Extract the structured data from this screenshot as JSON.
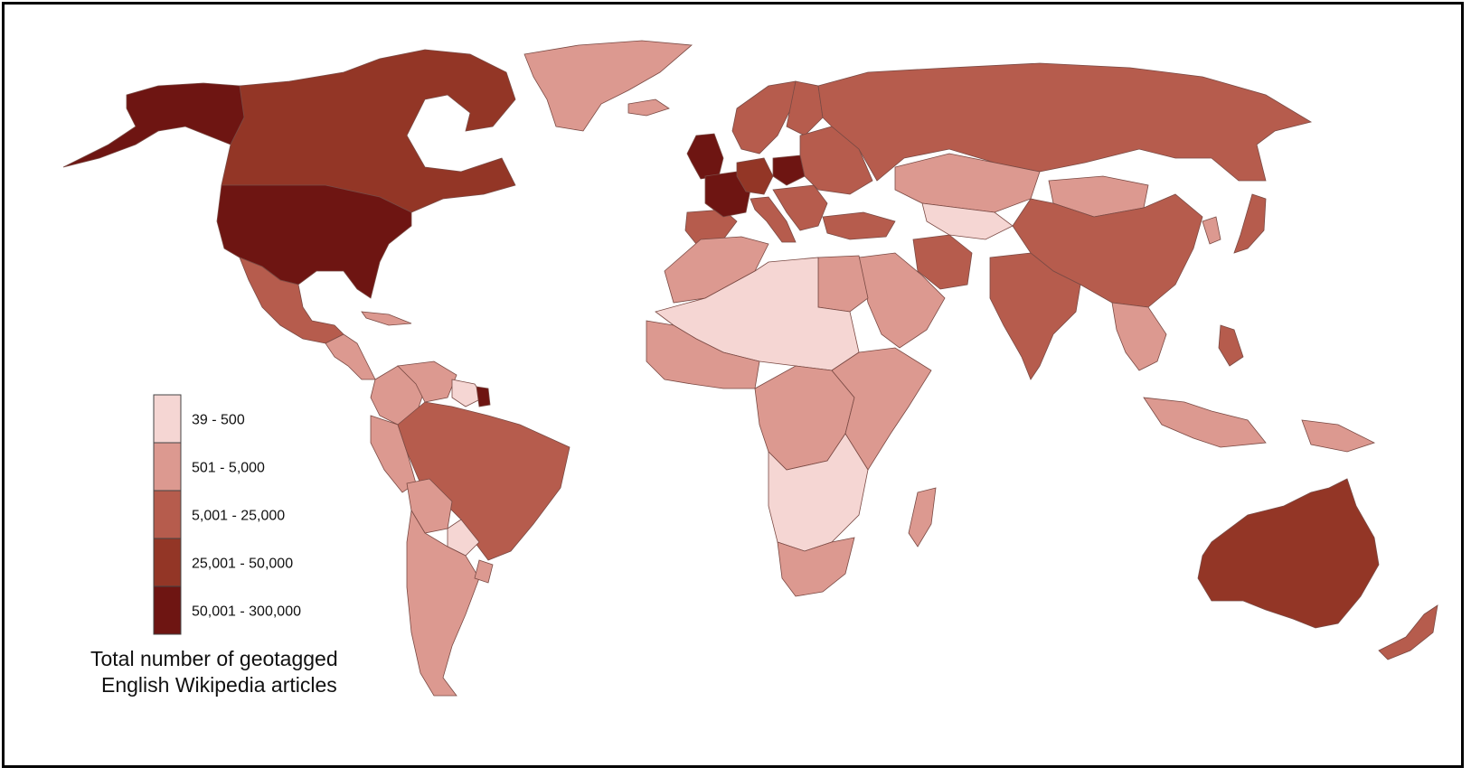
{
  "map": {
    "background_color": "#ffffff",
    "border_color": "#000000",
    "country_stroke": "#7a4a44"
  },
  "legend": {
    "title_line1": "Total number of geotagged",
    "title_line2": "English Wikipedia articles",
    "classes": [
      {
        "label": "39 - 500",
        "color": "#f5d6d3"
      },
      {
        "label": "501 - 5,000",
        "color": "#dc9990"
      },
      {
        "label": "5,001 - 25,000",
        "color": "#b65c4d"
      },
      {
        "label": "25,001 - 50,000",
        "color": "#933626"
      },
      {
        "label": "50,001 - 300,000",
        "color": "#6e1512"
      }
    ]
  },
  "regions": [
    {
      "name": "alaska",
      "class": 4
    },
    {
      "name": "canada",
      "class": 3
    },
    {
      "name": "greenland",
      "class": 1
    },
    {
      "name": "usa",
      "class": 4
    },
    {
      "name": "mexico",
      "class": 2
    },
    {
      "name": "central-america",
      "class": 1
    },
    {
      "name": "cuba",
      "class": 1
    },
    {
      "name": "colombia",
      "class": 1
    },
    {
      "name": "venezuela",
      "class": 1
    },
    {
      "name": "guyana-suriname",
      "class": 0
    },
    {
      "name": "french-guiana",
      "class": 4
    },
    {
      "name": "peru",
      "class": 1
    },
    {
      "name": "brazil",
      "class": 2
    },
    {
      "name": "bolivia",
      "class": 1
    },
    {
      "name": "paraguay",
      "class": 0
    },
    {
      "name": "chile-argentina",
      "class": 1
    },
    {
      "name": "uruguay",
      "class": 1
    },
    {
      "name": "iceland",
      "class": 1
    },
    {
      "name": "uk-ireland",
      "class": 4
    },
    {
      "name": "scandinavia",
      "class": 2
    },
    {
      "name": "finland",
      "class": 2
    },
    {
      "name": "iberia",
      "class": 2
    },
    {
      "name": "france",
      "class": 4
    },
    {
      "name": "germany",
      "class": 3
    },
    {
      "name": "poland",
      "class": 4
    },
    {
      "name": "italy",
      "class": 2
    },
    {
      "name": "balkans",
      "class": 2
    },
    {
      "name": "eastern-europe",
      "class": 2
    },
    {
      "name": "russia",
      "class": 2
    },
    {
      "name": "turkey",
      "class": 2
    },
    {
      "name": "north-africa",
      "class": 1
    },
    {
      "name": "sahara-sahel",
      "class": 0
    },
    {
      "name": "egypt",
      "class": 1
    },
    {
      "name": "west-africa",
      "class": 1
    },
    {
      "name": "central-africa",
      "class": 1
    },
    {
      "name": "east-africa",
      "class": 1
    },
    {
      "name": "southern-africa",
      "class": 0
    },
    {
      "name": "south-africa",
      "class": 1
    },
    {
      "name": "madagascar",
      "class": 1
    },
    {
      "name": "arabia",
      "class": 1
    },
    {
      "name": "iran",
      "class": 2
    },
    {
      "name": "central-asia",
      "class": 0
    },
    {
      "name": "kazakhstan",
      "class": 1
    },
    {
      "name": "mongolia",
      "class": 1
    },
    {
      "name": "china",
      "class": 2
    },
    {
      "name": "india",
      "class": 2
    },
    {
      "name": "southeast-asia",
      "class": 1
    },
    {
      "name": "korea",
      "class": 1
    },
    {
      "name": "japan",
      "class": 2
    },
    {
      "name": "philippines",
      "class": 2
    },
    {
      "name": "indonesia",
      "class": 1
    },
    {
      "name": "papua",
      "class": 1
    },
    {
      "name": "australia",
      "class": 3
    },
    {
      "name": "new-zealand",
      "class": 2
    }
  ]
}
